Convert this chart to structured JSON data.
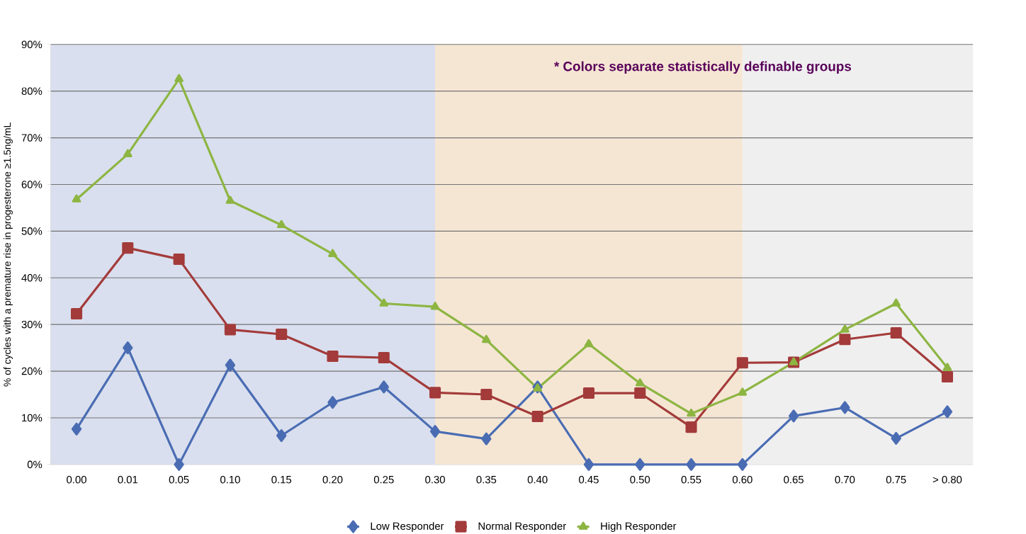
{
  "chart_data": {
    "type": "line",
    "ylabel": "% of cycles with a premature rise in progesterone ≥1.5ng/mL",
    "categories": [
      "0.00",
      "0.01",
      "0.05",
      "0.10",
      "0.15",
      "0.20",
      "0.25",
      "0.30",
      "0.35",
      "0.40",
      "0.45",
      "0.50",
      "0.55",
      "0.60",
      "0.65",
      "0.70",
      "0.75",
      "> 0.80"
    ],
    "series": [
      {
        "name": "Low Responder",
        "color": "#4a6cb3",
        "marker": "diamond",
        "values": [
          7.6,
          25.0,
          0,
          21.3,
          6.2,
          13.3,
          16.6,
          7.1,
          5.5,
          16.6,
          0,
          0,
          0,
          0,
          10.4,
          12.2,
          5.6,
          11.3
        ]
      },
      {
        "name": "Normal Responder",
        "color": "#a33b3a",
        "marker": "square",
        "values": [
          32.3,
          46.4,
          44.0,
          28.9,
          27.9,
          23.2,
          22.9,
          15.4,
          15.0,
          10.3,
          15.3,
          15.3,
          8.0,
          21.8,
          21.9,
          26.8,
          28.2,
          18.8
        ]
      },
      {
        "name": "High Responder",
        "color": "#8db542",
        "marker": "triangle",
        "values": [
          56.8,
          66.5,
          82.6,
          56.5,
          51.3,
          45.1,
          34.5,
          33.8,
          26.7,
          16.3,
          25.8,
          17.4,
          10.9,
          15.4,
          21.9,
          28.9,
          34.5,
          20.7
        ]
      }
    ],
    "ylim": [
      0,
      90
    ],
    "yticks": [
      {
        "value": 0,
        "label": "0%"
      },
      {
        "value": 10,
        "label": "10%"
      },
      {
        "value": 20,
        "label": "20%"
      },
      {
        "value": 30,
        "label": "30%"
      },
      {
        "value": 40,
        "label": "40%"
      },
      {
        "value": 50,
        "label": "50%"
      },
      {
        "value": 60,
        "label": "60%"
      },
      {
        "value": 70,
        "label": "70%"
      },
      {
        "value": 80,
        "label": "80%"
      },
      {
        "value": 90,
        "label": "90%"
      }
    ],
    "bands": [
      {
        "axis": "x",
        "from": "0.00",
        "to": "0.30",
        "color": "#d9dfee"
      },
      {
        "axis": "x",
        "from": "0.30",
        "to": "0.60",
        "color": "#f5e6d4"
      },
      {
        "axis": "x",
        "from": "0.60",
        "to": "> 0.80",
        "color": "#efefef"
      }
    ],
    "annotations": [
      "* Colors separate statistically definable groups"
    ],
    "grid": "y",
    "legend": "bottom",
    "line_style": "solid"
  }
}
